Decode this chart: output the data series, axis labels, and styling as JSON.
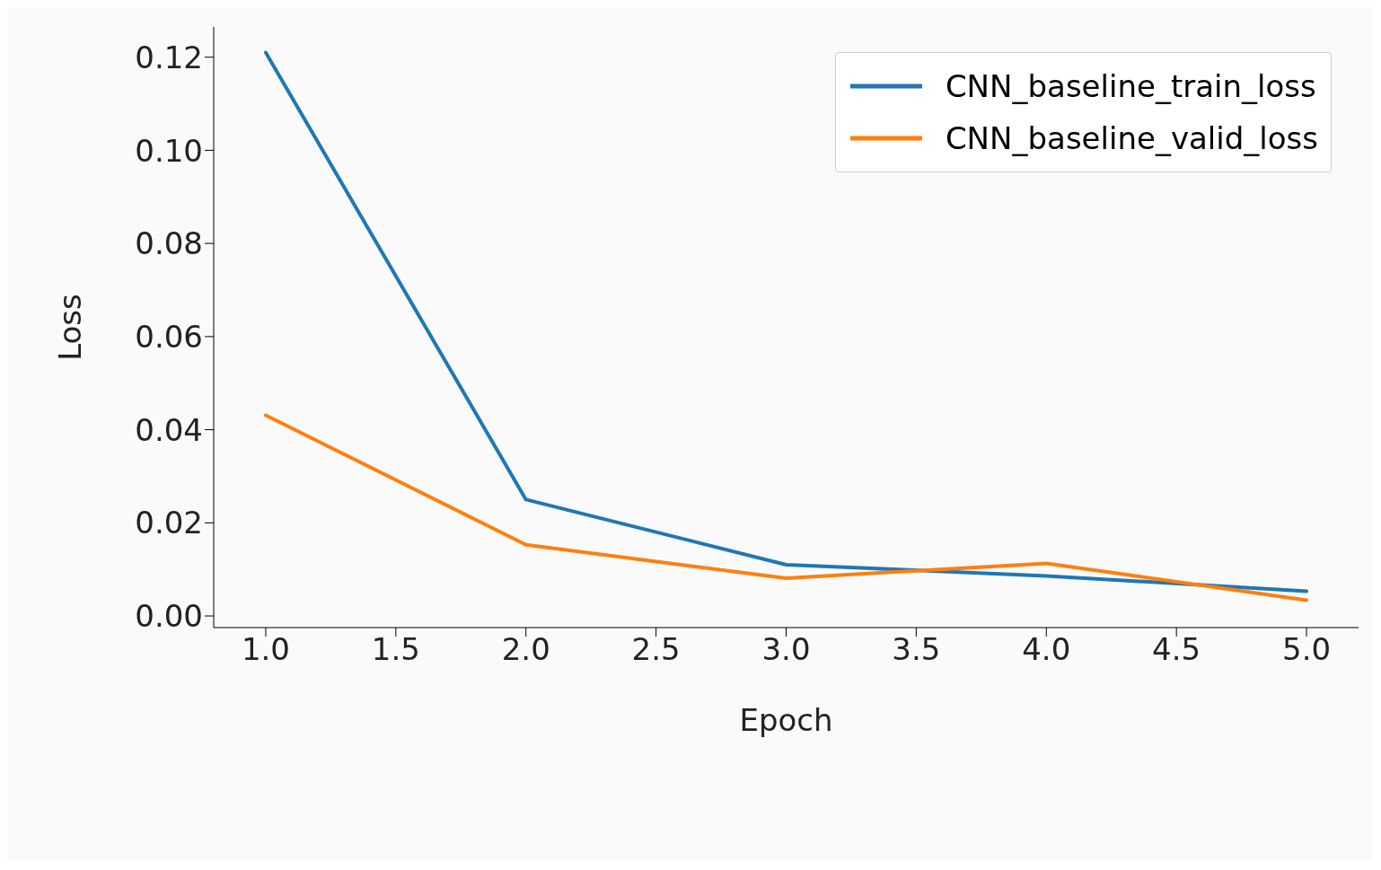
{
  "chart_data": {
    "type": "line",
    "xlabel": "Epoch",
    "ylabel": "Loss",
    "x": [
      1,
      2,
      3,
      4,
      5
    ],
    "series": [
      {
        "name": "CNN_baseline_train_loss",
        "color": "#1f77b4",
        "values": [
          0.121,
          0.025,
          0.011,
          0.0086,
          0.0053
        ]
      },
      {
        "name": "CNN_baseline_valid_loss",
        "color": "#ff7f0e",
        "values": [
          0.0431,
          0.0153,
          0.0081,
          0.0113,
          0.0034
        ]
      }
    ],
    "xlim": [
      0.8,
      5.2
    ],
    "xticks": [
      {
        "value": 1,
        "label": "1.0"
      },
      {
        "value": 1.5,
        "label": "1.5"
      },
      {
        "value": 2,
        "label": "2.0"
      },
      {
        "value": 2.5,
        "label": "2.5"
      },
      {
        "value": 3,
        "label": "3.0"
      },
      {
        "value": 3.5,
        "label": "3.5"
      },
      {
        "value": 4,
        "label": "4.0"
      },
      {
        "value": 4.5,
        "label": "4.5"
      },
      {
        "value": 5,
        "label": "5.0"
      }
    ],
    "ylim": [
      -0.0025,
      0.1265
    ],
    "yticks": [
      {
        "value": 0,
        "label": "0.00"
      },
      {
        "value": 0.02,
        "label": "0.02"
      },
      {
        "value": 0.04,
        "label": "0.04"
      },
      {
        "value": 0.06,
        "label": "0.06"
      },
      {
        "value": 0.08,
        "label": "0.08"
      },
      {
        "value": 0.1,
        "label": "0.10"
      },
      {
        "value": 0.12,
        "label": "0.12"
      }
    ],
    "grid": false,
    "legend": "top right",
    "marker": "none",
    "line_style": "solid"
  }
}
